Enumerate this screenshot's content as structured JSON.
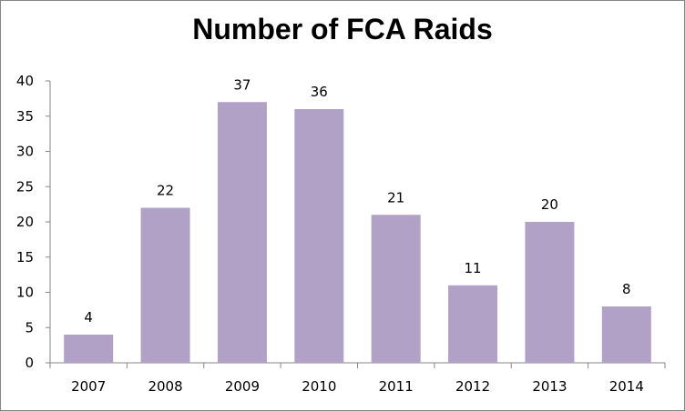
{
  "colors": {
    "bar": "#b2a1c7",
    "axis": "#868686"
  },
  "chart_data": {
    "type": "bar",
    "title": "Number of FCA Raids",
    "xlabel": "",
    "ylabel": "",
    "categories": [
      "2007",
      "2008",
      "2009",
      "2010",
      "2011",
      "2012",
      "2013",
      "2014"
    ],
    "values": [
      4,
      22,
      37,
      36,
      21,
      11,
      20,
      8
    ],
    "ylim": [
      0,
      40
    ],
    "yticks": [
      0,
      5,
      10,
      15,
      20,
      25,
      30,
      35,
      40
    ],
    "grid": false,
    "legend": "none",
    "data_labels": true
  }
}
